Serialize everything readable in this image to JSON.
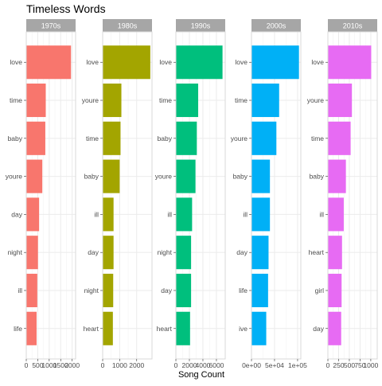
{
  "chart_data": {
    "type": "bar",
    "orientation": "horizontal",
    "title": "Timeless Words",
    "xlabel": "Song Count",
    "ylabel": "",
    "grid": true,
    "legend": "none",
    "panels": [
      {
        "facet": "1970s",
        "color": "#F8766D",
        "xlim": [
          0,
          2150
        ],
        "xticks": [
          0,
          500,
          1000,
          1500,
          2000
        ],
        "xtick_labels": [
          "0",
          "500",
          "1000",
          "1500",
          "2000"
        ],
        "categories": [
          "love",
          "time",
          "baby",
          "youre",
          "day",
          "night",
          "ill",
          "life"
        ],
        "values": [
          1950,
          850,
          830,
          700,
          560,
          510,
          480,
          450
        ]
      },
      {
        "facet": "1980s",
        "color": "#A3A500",
        "xlim": [
          0,
          2900
        ],
        "xticks": [
          0,
          1000,
          2000
        ],
        "xtick_labels": [
          "0",
          "1000",
          "2000"
        ],
        "categories": [
          "love",
          "youre",
          "time",
          "baby",
          "ill",
          "day",
          "night",
          "heart"
        ],
        "values": [
          2800,
          1100,
          1050,
          1000,
          640,
          640,
          620,
          600
        ]
      },
      {
        "facet": "1990s",
        "color": "#00BF7D",
        "xlim": [
          0,
          7300
        ],
        "xticks": [
          0,
          2000,
          4000,
          6000
        ],
        "xtick_labels": [
          "0",
          "2000",
          "4000",
          "6000"
        ],
        "categories": [
          "love",
          "time",
          "baby",
          "youre",
          "ill",
          "night",
          "day",
          "heart"
        ],
        "values": [
          6900,
          3300,
          3100,
          2900,
          2400,
          2250,
          2250,
          2100
        ]
      },
      {
        "facet": "2000s",
        "color": "#00B0F6",
        "xlim": [
          0,
          107000
        ],
        "xticks": [
          0,
          50000,
          100000
        ],
        "xtick_labels": [
          "0e+00",
          "5e+04",
          "1e+05"
        ],
        "categories": [
          "love",
          "time",
          "youre",
          "baby",
          "ill",
          "day",
          "life",
          "ive"
        ],
        "values": [
          103000,
          60000,
          54000,
          40000,
          40000,
          37000,
          36000,
          32000
        ]
      },
      {
        "facet": "2010s",
        "color": "#E76BF3",
        "xlim": [
          0,
          1150
        ],
        "xticks": [
          0,
          250,
          500,
          750,
          1000
        ],
        "xtick_labels": [
          "0",
          "250",
          "500",
          "750",
          "1000"
        ],
        "categories": [
          "love",
          "youre",
          "time",
          "baby",
          "ill",
          "heart",
          "girl",
          "day"
        ],
        "values": [
          1010,
          560,
          530,
          420,
          370,
          330,
          320,
          310
        ]
      }
    ]
  }
}
